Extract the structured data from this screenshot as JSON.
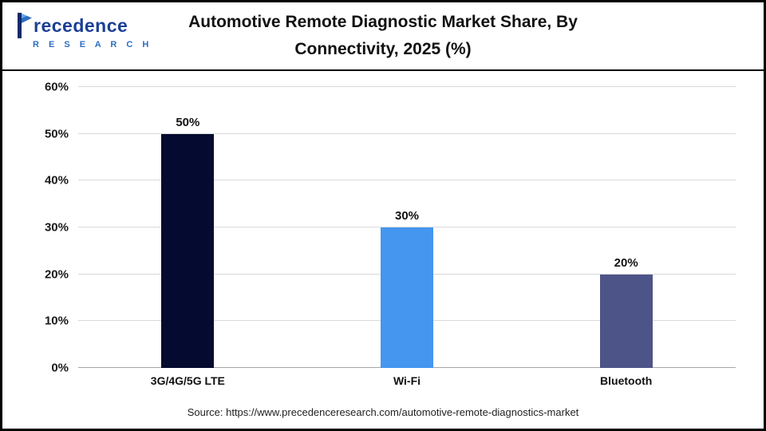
{
  "header": {
    "title_line1": "Automotive Remote Diagnostic Market Share, By",
    "title_line2": "Connectivity, 2025 (%)",
    "logo": {
      "word": "recedence",
      "sub": "R E S E A R C H"
    }
  },
  "chart_data": {
    "type": "bar",
    "title": "Automotive Remote Diagnostic Market Share, By Connectivity, 2025 (%)",
    "categories": [
      "3G/4G/5G LTE",
      "Wi-Fi",
      "Bluetooth"
    ],
    "values": [
      50,
      30,
      20
    ],
    "value_labels": [
      "50%",
      "30%",
      "20%"
    ],
    "bar_colors": [
      "#050a30",
      "#4496ef",
      "#4d5488"
    ],
    "xlabel": "",
    "ylabel": "",
    "ylim": [
      0,
      60
    ],
    "ytick_step": 10,
    "ytick_labels": [
      "0%",
      "10%",
      "20%",
      "30%",
      "40%",
      "50%",
      "60%"
    ],
    "grid": true,
    "legend": "none"
  },
  "footer": {
    "source": "Source: https://www.precedenceresearch.com/automotive-remote-diagnostics-market"
  },
  "colors": {
    "logo_primary": "#1b3f94",
    "logo_secondary": "#2d6fc1",
    "gridline": "#d9d9d9",
    "border": "#000000"
  }
}
